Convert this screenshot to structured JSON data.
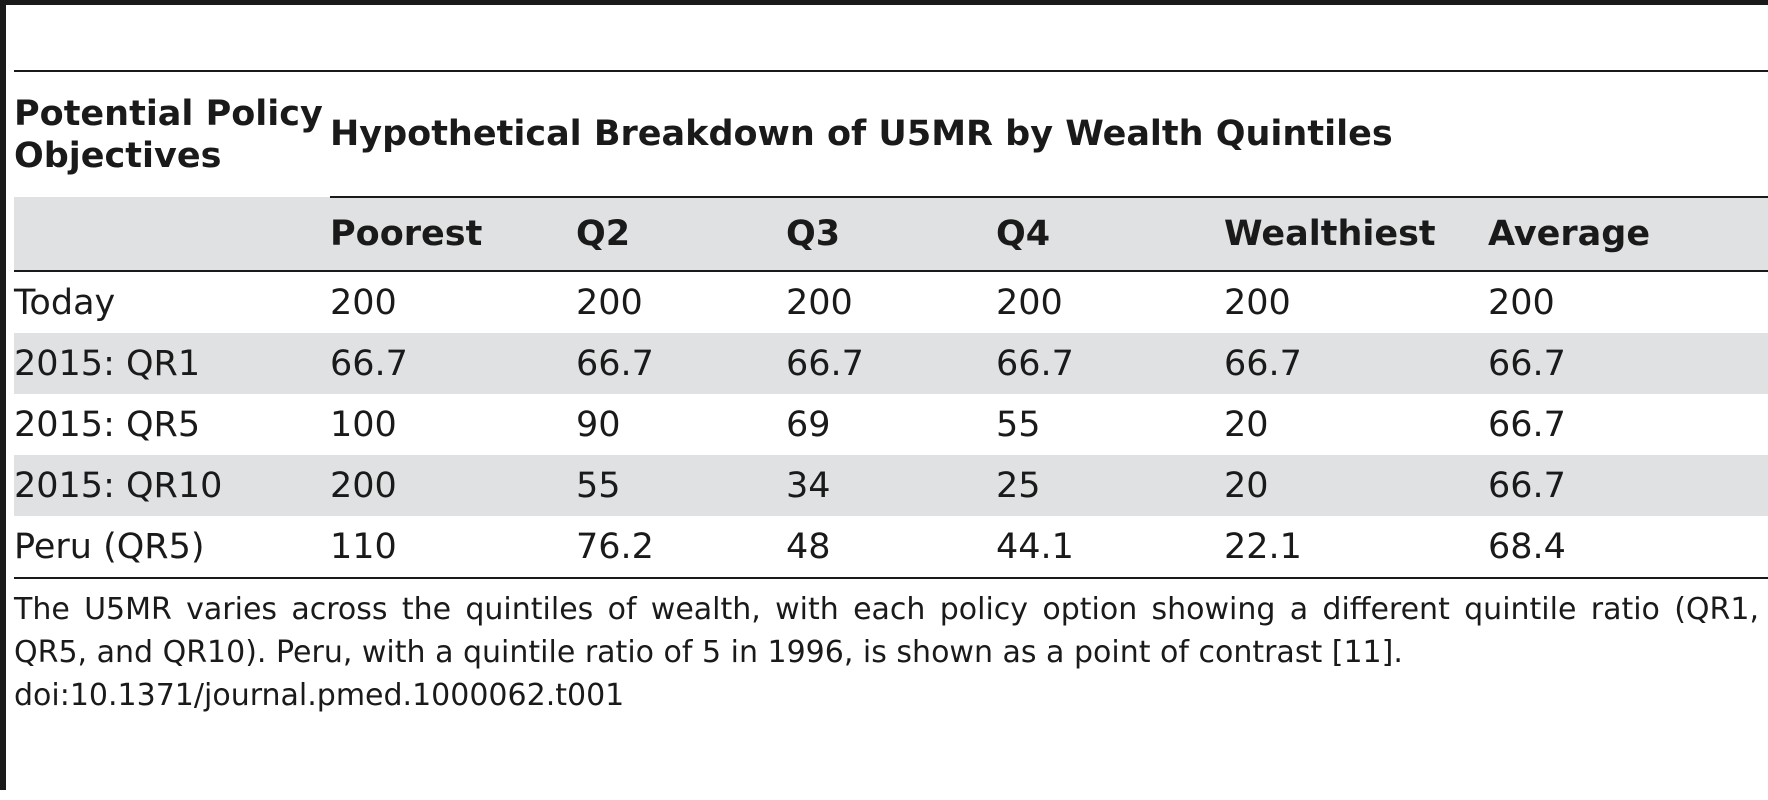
{
  "table": {
    "row_header_label": "Potential Policy Objectives",
    "group_header": "Hypothetical Breakdown of U5MR by Wealth Quintiles",
    "columns": [
      "Poorest",
      "Q2",
      "Q3",
      "Q4",
      "Wealthiest",
      "Average"
    ],
    "rows": [
      {
        "label": "Today",
        "cells": [
          "200",
          "200",
          "200",
          "200",
          "200",
          "200"
        ]
      },
      {
        "label": "2015: QR1",
        "cells": [
          "66.7",
          "66.7",
          "66.7",
          "66.7",
          "66.7",
          "66.7"
        ]
      },
      {
        "label": "2015: QR5",
        "cells": [
          "100",
          "90",
          "69",
          "55",
          "20",
          "66.7"
        ]
      },
      {
        "label": "2015: QR10",
        "cells": [
          "200",
          "55",
          "34",
          "25",
          "20",
          "66.7"
        ]
      },
      {
        "label": "Peru (QR5)",
        "cells": [
          "110",
          "76.2",
          "48",
          "44.1",
          "22.1",
          "68.4"
        ]
      }
    ]
  },
  "caption": "The U5MR varies across the quintiles of wealth, with each policy option showing a different quintile ratio (QR1, QR5, and QR10). Peru, with a quintile ratio of 5 in 1996, is shown as a point of contrast [11].",
  "doi": "doi:10.1371/journal.pmed.1000062.t001"
}
